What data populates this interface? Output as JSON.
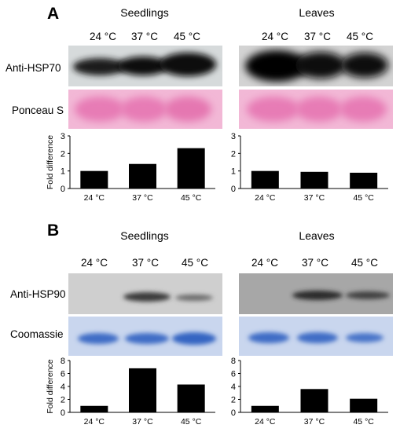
{
  "panels": [
    {
      "letter": "A",
      "columns": [
        "Seedlings",
        "Leaves"
      ],
      "lanes": [
        "24 °C",
        "37 °C",
        "45 °C"
      ],
      "row_labels": [
        "Anti-HSP70",
        "Ponceau S"
      ]
    },
    {
      "letter": "B",
      "columns": [
        "Seedlings",
        "Leaves"
      ],
      "lanes": [
        "24 °C",
        "37 °C",
        "45 °C"
      ],
      "row_labels": [
        "Anti-HSP90",
        "Coomassie"
      ]
    }
  ],
  "colors": {
    "bar": "#000000",
    "ponceau": "#e77cb5",
    "coomassie": "#5b86d6"
  },
  "chart_data": [
    {
      "type": "bar",
      "panel": "A",
      "group": "Seedlings",
      "categories": [
        "24 °C",
        "37 °C",
        "45 °C"
      ],
      "values": [
        1.0,
        1.4,
        2.3
      ],
      "ylabel": "Fold difference",
      "ylim": [
        0,
        3
      ],
      "yticks": [
        0,
        1,
        2,
        3
      ]
    },
    {
      "type": "bar",
      "panel": "A",
      "group": "Leaves",
      "categories": [
        "24 °C",
        "37 °C",
        "45 °C"
      ],
      "values": [
        1.0,
        0.95,
        0.9
      ],
      "ylabel": "",
      "ylim": [
        0,
        3
      ],
      "yticks": [
        0,
        1,
        2,
        3
      ]
    },
    {
      "type": "bar",
      "panel": "B",
      "group": "Seedlings",
      "categories": [
        "24 °C",
        "37 °C",
        "45 °C"
      ],
      "values": [
        1.0,
        6.8,
        4.3
      ],
      "ylabel": "Fold difference",
      "ylim": [
        0,
        8
      ],
      "yticks": [
        0,
        2,
        4,
        6,
        8
      ]
    },
    {
      "type": "bar",
      "panel": "B",
      "group": "Leaves",
      "categories": [
        "24 °C",
        "37 °C",
        "45 °C"
      ],
      "values": [
        1.0,
        3.6,
        2.1
      ],
      "ylabel": "",
      "ylim": [
        0,
        8
      ],
      "yticks": [
        0,
        2,
        4,
        6,
        8
      ]
    }
  ]
}
